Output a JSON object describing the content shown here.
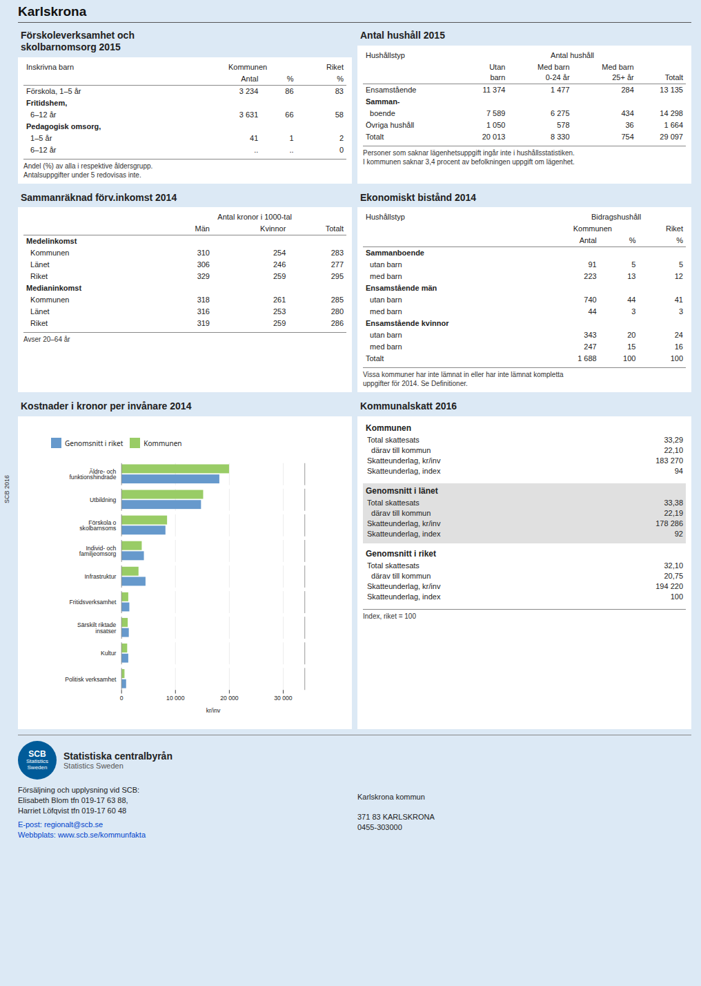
{
  "chart_data": [
    {
      "type": "page",
      "title": "Karlskrona",
      "color": "#dce9f5",
      "annotations": [
        "SCB 2016"
      ]
    },
    {
      "type": "table",
      "title": "Förskoleverksamhet och\nskolbarnomsorg 2015",
      "header_rows": [
        [
          "Inskrivna barn",
          "Kommunen",
          null,
          "Riket"
        ],
        [
          null,
          "Antal",
          "%",
          "%"
        ]
      ],
      "rows": [
        [
          "Förskola, 1–5 år",
          "3 234",
          "86",
          "83"
        ],
        [
          "Fritidshem,",
          null,
          null,
          null
        ],
        [
          "  6–12 år",
          "3 631",
          "66",
          "58"
        ],
        [
          "Pedagogisk omsorg,",
          null,
          null,
          null
        ],
        [
          "  1–5 år",
          "41",
          "1",
          "2"
        ],
        [
          "  6–12 år",
          "..",
          "..",
          "0"
        ]
      ],
      "notes": [
        "Andel (%) av alla i respektive åldersgrupp.",
        "Antalsuppgifter under 5 redovisas inte."
      ]
    },
    {
      "type": "table",
      "title": "Antal hushåll 2015",
      "header_rows": [
        [
          "Hushållstyp",
          "Antal hushåll",
          null,
          null,
          null
        ],
        [
          null,
          "Utan\nbarn",
          "Med barn\n0-24 år",
          "Med barn\n25+ år",
          "Totalt"
        ]
      ],
      "rows": [
        [
          "Ensamstående",
          "11 374",
          "1 477",
          "284",
          "13 135"
        ],
        [
          "Samman-",
          null,
          null,
          null,
          null
        ],
        [
          "  boende",
          "7 589",
          "6 275",
          "434",
          "14 298"
        ],
        [
          "Övriga hushåll",
          "1 050",
          "578",
          "36",
          "1 664"
        ],
        [
          "Totalt",
          "20 013",
          "8 330",
          "754",
          "29 097"
        ]
      ],
      "notes": [
        "Personer som saknar lägenhetsuppgift ingår inte i hushållsstatistiken.",
        "I kommunen saknar 3,4 procent av befolkningen uppgift om lägenhet."
      ]
    },
    {
      "type": "table",
      "title": "Sammanräknad förv.inkomst 2014",
      "header_rows": [
        [
          null,
          "Antal kronor i 1000-tal",
          null,
          null
        ],
        [
          null,
          "Män",
          "Kvinnor",
          "Totalt"
        ]
      ],
      "rows": [
        [
          "Medelinkomst",
          null,
          null,
          null
        ],
        [
          "  Kommunen",
          "310",
          "254",
          "283"
        ],
        [
          "  Länet",
          "306",
          "246",
          "277"
        ],
        [
          "  Riket",
          "329",
          "259",
          "295"
        ],
        [
          "Medianinkomst",
          null,
          null,
          null
        ],
        [
          "  Kommunen",
          "318",
          "261",
          "285"
        ],
        [
          "  Länet",
          "316",
          "253",
          "280"
        ],
        [
          "  Riket",
          "319",
          "259",
          "286"
        ]
      ],
      "notes": [
        "Avser 20–64 år"
      ]
    },
    {
      "type": "table",
      "title": "Ekonomiskt bistånd 2014",
      "header_rows": [
        [
          "Hushållstyp",
          "Bidragshushåll",
          null,
          null
        ],
        [
          null,
          "Kommunen",
          null,
          "Riket"
        ],
        [
          null,
          "Antal",
          "%",
          "%"
        ]
      ],
      "rows": [
        [
          "Sammanboende",
          null,
          null,
          null
        ],
        [
          "  utan barn",
          "91",
          "5",
          "5"
        ],
        [
          "  med barn",
          "223",
          "13",
          "12"
        ],
        [
          "Ensamstående män",
          null,
          null,
          null
        ],
        [
          "  utan barn",
          "740",
          "44",
          "41"
        ],
        [
          "  med barn",
          "44",
          "3",
          "3"
        ],
        [
          "Ensamstående kvinnor",
          null,
          null,
          null
        ],
        [
          "  utan barn",
          "343",
          "20",
          "24"
        ],
        [
          "  med barn",
          "247",
          "15",
          "16"
        ],
        [
          "Totalt",
          "1 688",
          "100",
          "100"
        ]
      ],
      "notes": [
        "Vissa kommuner har inte lämnat in eller har inte lämnat kompletta\nuppgifter för 2014. Se Definitioner."
      ]
    },
    {
      "type": "bar",
      "orientation": "horizontal",
      "title": "Kostnader i kronor per invånare 2014",
      "xlabel": "kr/inv",
      "categories": [
        "Äldre- och\nfunktionshindrade",
        "Utbildning",
        "Förskola o\nskolbarnsoms",
        "Individ- och\nfamiljeomsorg",
        "Infrastruktur",
        "Fritidsverksamhet",
        "Särskilt riktade\ninsatser",
        "Kultur",
        "Politisk verksamhet"
      ],
      "series": [
        {
          "name": "Genomsnitt i riket",
          "color": "#6699cc",
          "values": [
            18200,
            14800,
            8200,
            4200,
            4500,
            1500,
            1400,
            1300,
            900
          ]
        },
        {
          "name": "Kommunen",
          "color": "#99cc66",
          "values": [
            20000,
            15200,
            8500,
            3800,
            3200,
            1300,
            1200,
            1100,
            600
          ]
        }
      ],
      "xlim": [
        0,
        34000
      ],
      "xticks": [
        0,
        {
          "value": 10000,
          "label": "10 000"
        },
        {
          "value": 20000,
          "label": "20 000"
        },
        {
          "value": 30000,
          "label": "30 000"
        }
      ],
      "grid": true,
      "legend": "top"
    },
    {
      "type": "table",
      "title": "Kommunalskatt 2016",
      "groups": [
        {
          "title": "Kommunen",
          "rows": [
            [
              "Total skattesats",
              "33,29"
            ],
            [
              "  därav till kommun",
              "22,10"
            ],
            [
              "Skatteunderlag, kr/inv",
              "183 270"
            ],
            [
              "Skatteunderlag, index",
              "94"
            ]
          ]
        },
        {
          "title": "Genomsnitt i länet",
          "color": "#e0e0e0",
          "rows": [
            [
              "Total skattesats",
              "33,38"
            ],
            [
              "  därav till kommun",
              "22,19"
            ],
            [
              "Skatteunderlag, kr/inv",
              "178 286"
            ],
            [
              "Skatteunderlag, index",
              "92"
            ]
          ]
        },
        {
          "title": "Genomsnitt i riket",
          "rows": [
            [
              "Total skattesats",
              "32,10"
            ],
            [
              "  därav till kommun",
              "20,75"
            ],
            [
              "Skatteunderlag, kr/inv",
              "194 220"
            ],
            [
              "Skatteunderlag, index",
              "100"
            ]
          ]
        }
      ],
      "notes": [
        "Index, riket = 100"
      ]
    },
    {
      "type": "footer",
      "title": "Statistiska centralbyrån",
      "subtitle": "Statistics Sweden",
      "logo": [
        "SCB",
        "Statistics",
        "Sweden"
      ],
      "color": "#005b99",
      "lines": [
        "Försäljning och upplysning vid SCB:",
        "Elisabeth Blom tfn 019-17 63 88,",
        "Harriet Löfqvist tfn 019-17 60 48"
      ],
      "links": [
        "E-post: regionalt@scb.se",
        "Webbplats: www.scb.se/kommunfakta"
      ],
      "address": [
        "Karlskrona kommun",
        "371 83  KARLSKRONA",
        "0455-303000"
      ]
    }
  ]
}
